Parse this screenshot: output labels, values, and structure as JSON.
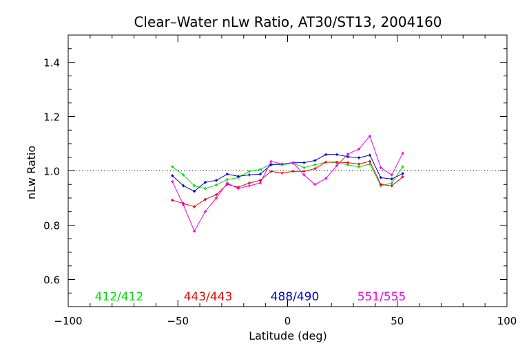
{
  "chart_data": {
    "type": "line",
    "title": "Clear–Water nLw Ratio, AT30/ST13, 2004160",
    "xlabel": "Latitude (deg)",
    "ylabel": "nLw Ratio",
    "xlim": [
      -100,
      100
    ],
    "ylim": [
      0.5,
      1.5
    ],
    "x_ticks": [
      -100,
      -50,
      0,
      50,
      100
    ],
    "x_tick_labels": [
      "−100",
      "−50",
      "0",
      "50",
      "100"
    ],
    "y_ticks": [
      0.6,
      0.8,
      1.0,
      1.2,
      1.4
    ],
    "y_tick_labels": [
      "0.6",
      "0.8",
      "1.0",
      "1.2",
      "1.4"
    ],
    "reference_line": 1.0,
    "grid": false,
    "legend_position": "bottom",
    "x": [
      -52.5,
      -47.5,
      -42.5,
      -37.5,
      -32.5,
      -27.5,
      -22.5,
      -17.5,
      -12.5,
      -7.5,
      -2.5,
      2.5,
      7.5,
      12.5,
      17.5,
      22.5,
      27.5,
      32.5,
      37.5,
      42.5,
      47.5,
      52.5
    ],
    "series": [
      {
        "name": "412/412",
        "color": "#00dd00",
        "values": [
          1.015,
          0.985,
          0.945,
          0.935,
          0.948,
          0.968,
          0.975,
          0.998,
          1.005,
          1.025,
          1.022,
          1.028,
          1.012,
          1.022,
          1.032,
          1.03,
          1.022,
          1.015,
          1.025,
          0.945,
          0.955,
          1.015
        ]
      },
      {
        "name": "443/443",
        "color": "#ee0000",
        "values": [
          0.892,
          0.88,
          0.868,
          0.895,
          0.912,
          0.95,
          0.94,
          0.955,
          0.965,
          0.998,
          0.992,
          0.998,
          0.998,
          1.008,
          1.032,
          1.032,
          1.03,
          1.025,
          1.035,
          0.95,
          0.945,
          0.978
        ]
      },
      {
        "name": "488/490",
        "color": "#0000cc",
        "values": [
          0.982,
          0.945,
          0.925,
          0.958,
          0.965,
          0.988,
          0.98,
          0.985,
          0.988,
          1.022,
          1.025,
          1.03,
          1.03,
          1.038,
          1.06,
          1.06,
          1.052,
          1.048,
          1.058,
          0.975,
          0.97,
          0.99
        ]
      },
      {
        "name": "551/555",
        "color": "#ee00ee",
        "values": [
          0.96,
          0.875,
          0.778,
          0.85,
          0.9,
          0.955,
          0.935,
          0.945,
          0.955,
          1.035,
          1.025,
          1.03,
          0.985,
          0.95,
          0.972,
          1.02,
          1.062,
          1.08,
          1.128,
          1.012,
          0.985,
          1.065
        ]
      }
    ]
  }
}
